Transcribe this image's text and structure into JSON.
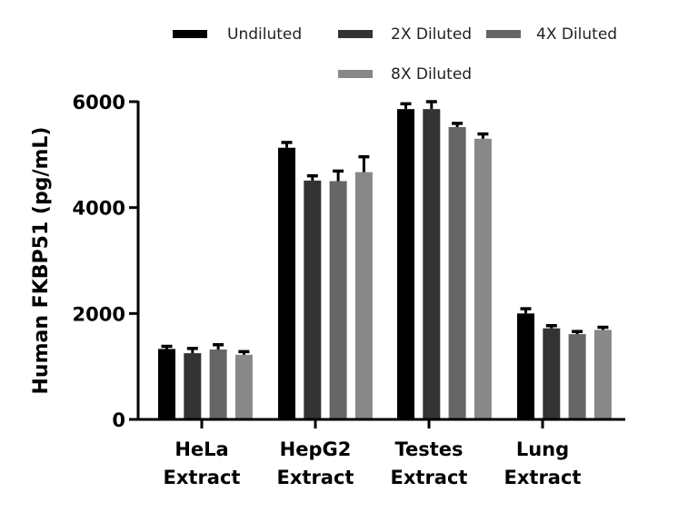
{
  "chart_data": {
    "type": "bar",
    "title": "",
    "xlabel": "",
    "ylabel": "Human FKBP51 (pg/mL)",
    "ylim": [
      0,
      6000
    ],
    "yticks": [
      0,
      2000,
      4000,
      6000
    ],
    "grid": false,
    "legend_position": "top",
    "categories": [
      [
        "HeLa",
        "Extract"
      ],
      [
        "HepG2",
        "Extract"
      ],
      [
        "Testes",
        "Extract"
      ],
      [
        "Lung",
        "Extract"
      ]
    ],
    "series": [
      {
        "name": "Undiluted",
        "color": "#000000",
        "values": [
          1330,
          5130,
          5860,
          2000
        ],
        "errors": [
          50,
          100,
          100,
          90
        ]
      },
      {
        "name": "2X Diluted",
        "color": "#333333",
        "values": [
          1250,
          4510,
          5860,
          1720
        ],
        "errors": [
          90,
          90,
          140,
          50
        ]
      },
      {
        "name": "4X Diluted",
        "color": "#666666",
        "values": [
          1320,
          4500,
          5520,
          1610
        ],
        "errors": [
          90,
          190,
          70,
          50
        ]
      },
      {
        "name": "8X Diluted",
        "color": "#888888",
        "values": [
          1220,
          4670,
          5300,
          1690
        ],
        "errors": [
          60,
          290,
          90,
          50
        ]
      }
    ]
  }
}
